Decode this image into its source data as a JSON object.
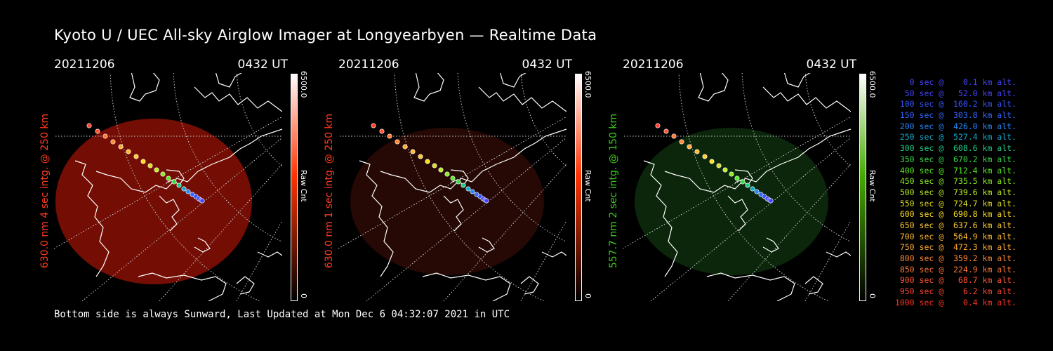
{
  "title": "Kyoto U / UEC All-sky Airglow Imager at Longyearbyen — Realtime Data",
  "footer": "Bottom side is always Sunward, Last Updated at Mon Dec  6 04:32:07 2021 in UTC",
  "panels": [
    {
      "date": "20211206",
      "time": "0432 UT",
      "ylabel": "630.0 nm 4 sec intg. @ 250 km",
      "ylabel_color": "#ff3c1e",
      "cbar_max": "6500.0",
      "cbar_min": "0",
      "cbar_unit": "Raw Cnt",
      "cbar_colors": [
        "#ffffff",
        "#ff3300",
        "#000000"
      ],
      "glow_color": "#7a0f05",
      "glow_opacity": 0.95
    },
    {
      "date": "20211206",
      "time": "0432 UT",
      "ylabel": "630.0 nm 1 sec intg. @ 250 km",
      "ylabel_color": "#ff3c1e",
      "cbar_max": "6500.0",
      "cbar_min": "0",
      "cbar_unit": "Raw Cnt",
      "cbar_colors": [
        "#ffffff",
        "#ff3300",
        "#000000"
      ],
      "glow_color": "#2a0a05",
      "glow_opacity": 0.9
    },
    {
      "date": "20211206",
      "time": "0432 UT",
      "ylabel": "557.7 nm 2 sec intg. @ 150 km",
      "ylabel_color": "#3cc81e",
      "cbar_max": "6500.0",
      "cbar_min": "0",
      "cbar_unit": "Raw Cnt",
      "cbar_colors": [
        "#ffffff",
        "#44aa00",
        "#000000"
      ],
      "glow_color": "#0c2a0c",
      "glow_opacity": 0.9
    }
  ],
  "legend": [
    {
      "text": "   0 sec @    0.1 km alt.",
      "color": "#4444ff"
    },
    {
      "text": "  50 sec @   52.0 km alt.",
      "color": "#4444ff"
    },
    {
      "text": " 100 sec @  160.2 km alt.",
      "color": "#3355ff"
    },
    {
      "text": " 150 sec @  303.8 km alt.",
      "color": "#3366ff"
    },
    {
      "text": " 200 sec @  426.0 km alt.",
      "color": "#2288ff"
    },
    {
      "text": " 250 sec @  527.4 km alt.",
      "color": "#11aacc"
    },
    {
      "text": " 300 sec @  608.6 km alt.",
      "color": "#22cc88"
    },
    {
      "text": " 350 sec @  670.2 km alt.",
      "color": "#33dd44"
    },
    {
      "text": " 400 sec @  712.4 km alt.",
      "color": "#55ee22"
    },
    {
      "text": " 450 sec @  735.5 km alt.",
      "color": "#88ee22"
    },
    {
      "text": " 500 sec @  739.6 km alt.",
      "color": "#bbee22"
    },
    {
      "text": " 550 sec @  724.7 km alt.",
      "color": "#dddd22"
    },
    {
      "text": " 600 sec @  690.8 km alt.",
      "color": "#ffdd22"
    },
    {
      "text": " 650 sec @  637.6 km alt.",
      "color": "#ffcc33"
    },
    {
      "text": " 700 sec @  564.9 km alt.",
      "color": "#ffbb33"
    },
    {
      "text": " 750 sec @  472.3 km alt.",
      "color": "#ffaa33"
    },
    {
      "text": " 800 sec @  359.2 km alt.",
      "color": "#ff8833"
    },
    {
      "text": " 850 sec @  224.9 km alt.",
      "color": "#ff7733"
    },
    {
      "text": " 900 sec @   68.7 km alt.",
      "color": "#ff5533"
    },
    {
      "text": " 950 sec @    6.2 km alt.",
      "color": "#ff4433"
    },
    {
      "text": "1000 sec @    0.4 km alt.",
      "color": "#ff3322"
    }
  ]
}
